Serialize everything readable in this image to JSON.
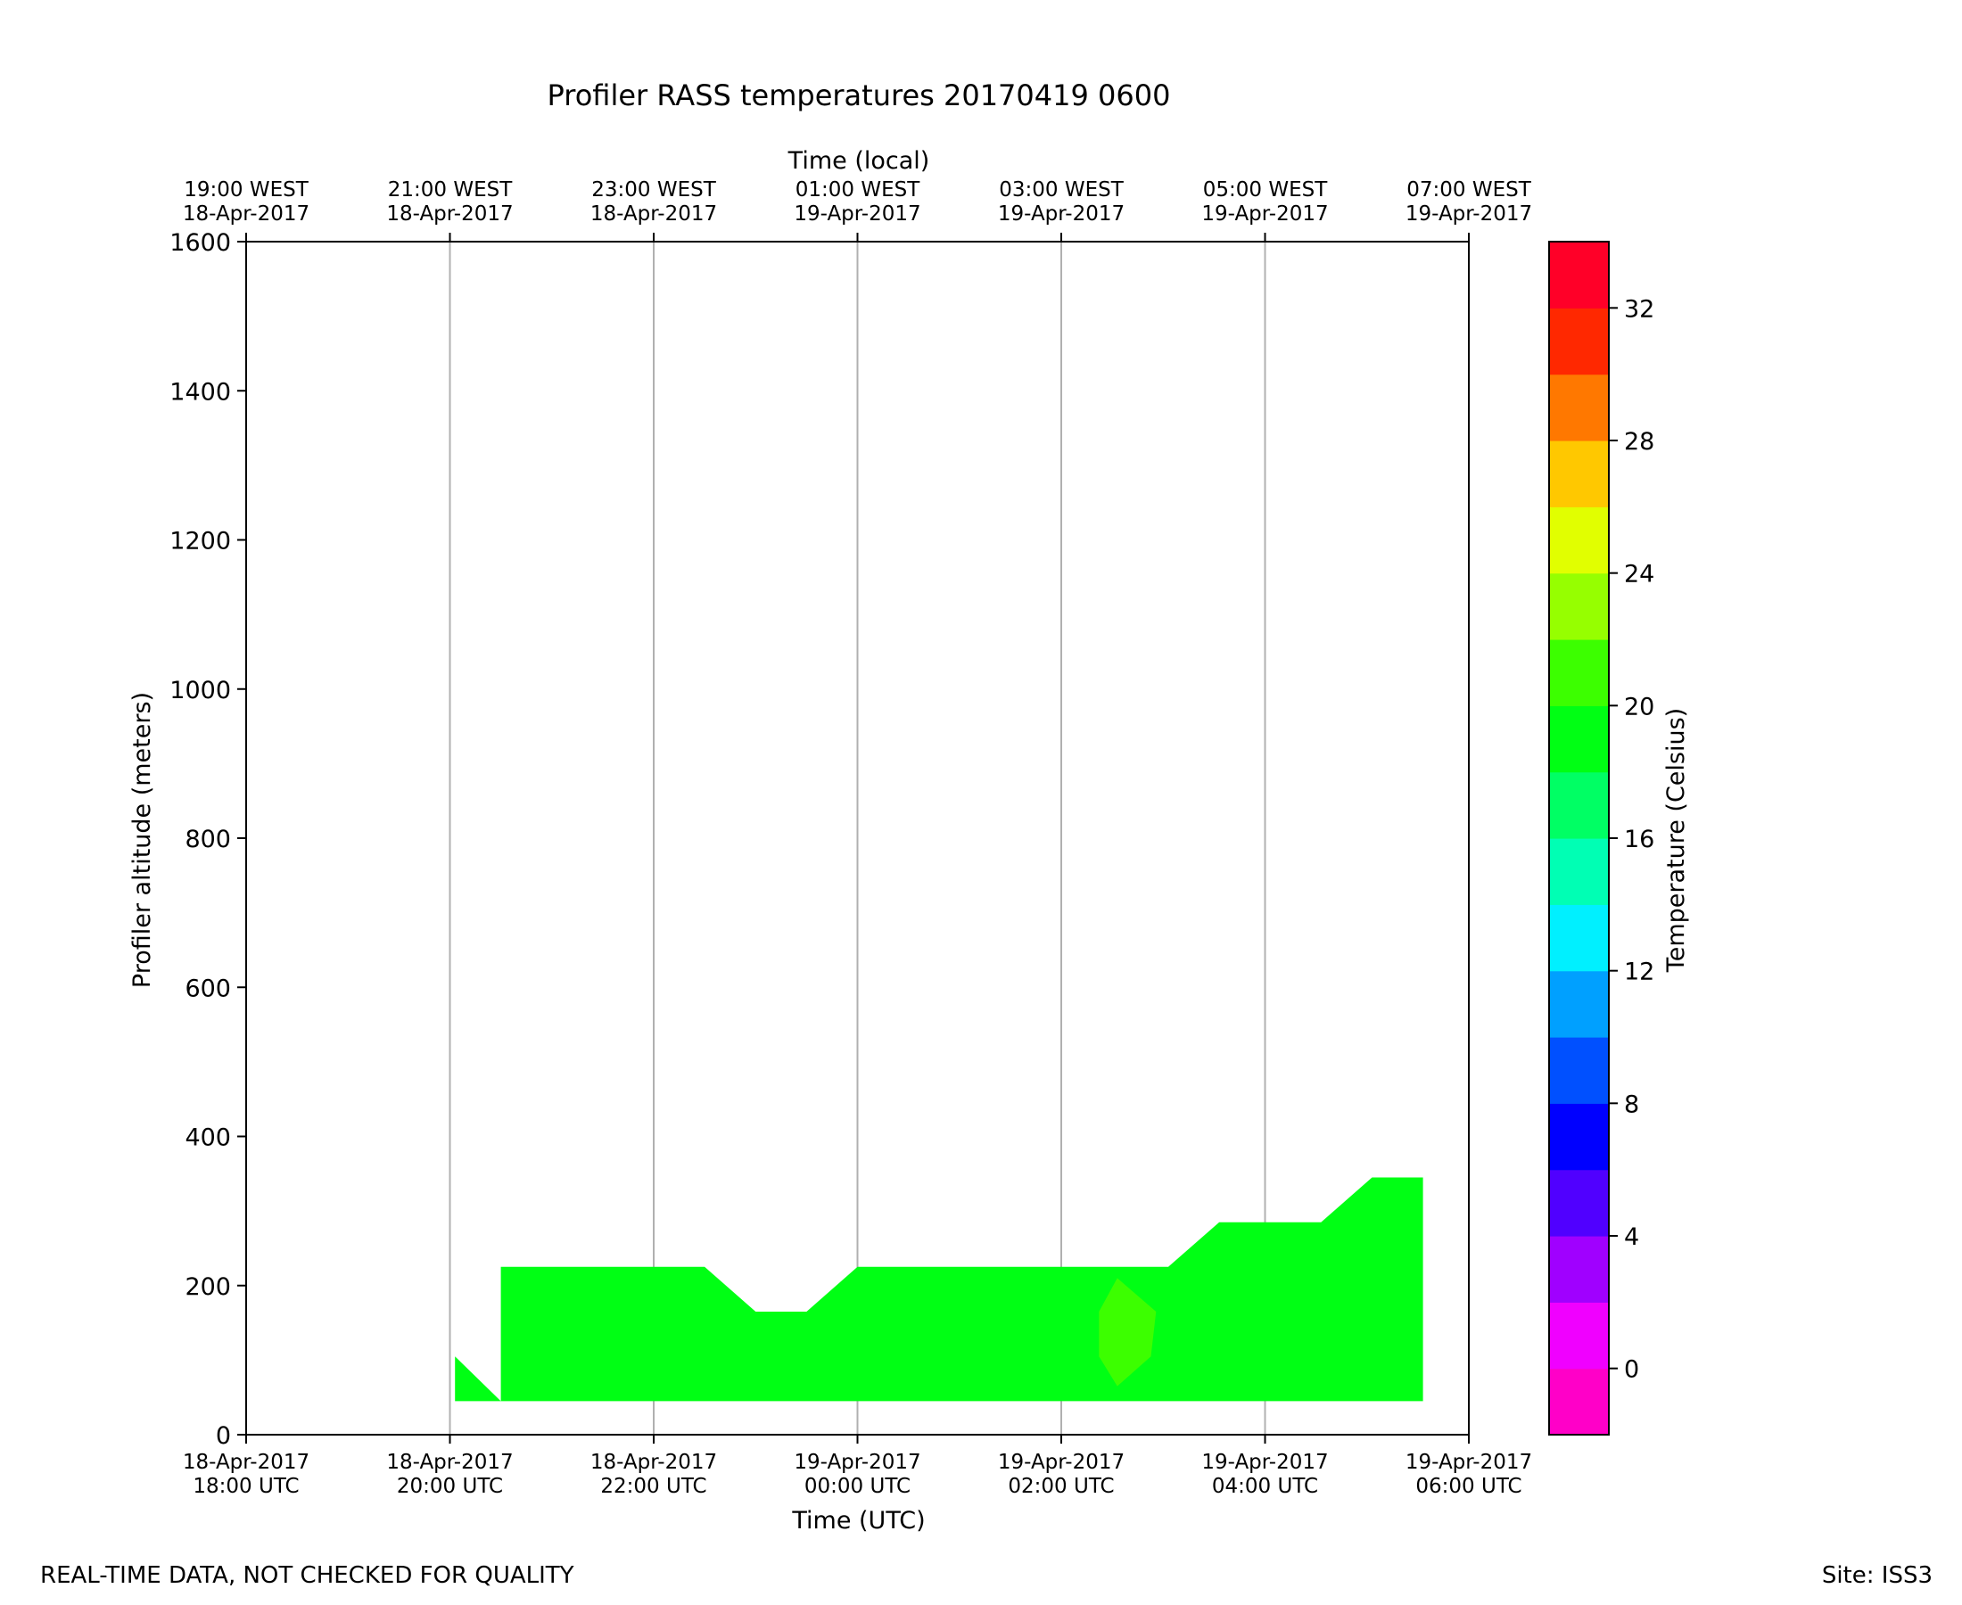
{
  "chart_data": {
    "type": "heatmap",
    "title": "Profiler RASS temperatures 20170419 0600",
    "xlabel": "Time (UTC)",
    "x2label": "Time (local)",
    "ylabel": "Profiler altitude (meters)",
    "xlim": [
      0,
      12
    ],
    "ylim": [
      0,
      1600
    ],
    "x_ticks": [
      {
        "value": 0,
        "line1": "18-Apr-2017",
        "line2": "18:00 UTC"
      },
      {
        "value": 2,
        "line1": "18-Apr-2017",
        "line2": "20:00 UTC"
      },
      {
        "value": 4,
        "line1": "18-Apr-2017",
        "line2": "22:00 UTC"
      },
      {
        "value": 6,
        "line1": "19-Apr-2017",
        "line2": "00:00 UTC"
      },
      {
        "value": 8,
        "line1": "19-Apr-2017",
        "line2": "02:00 UTC"
      },
      {
        "value": 10,
        "line1": "19-Apr-2017",
        "line2": "04:00 UTC"
      },
      {
        "value": 12,
        "line1": "19-Apr-2017",
        "line2": "06:00 UTC"
      }
    ],
    "x2_ticks": [
      {
        "value": 0,
        "line1": "19:00 WEST",
        "line2": "18-Apr-2017"
      },
      {
        "value": 2,
        "line1": "21:00 WEST",
        "line2": "18-Apr-2017"
      },
      {
        "value": 4,
        "line1": "23:00 WEST",
        "line2": "18-Apr-2017"
      },
      {
        "value": 6,
        "line1": "01:00 WEST",
        "line2": "19-Apr-2017"
      },
      {
        "value": 8,
        "line1": "03:00 WEST",
        "line2": "19-Apr-2017"
      },
      {
        "value": 10,
        "line1": "05:00 WEST",
        "line2": "19-Apr-2017"
      },
      {
        "value": 12,
        "line1": "07:00 WEST",
        "line2": "19-Apr-2017"
      }
    ],
    "y_ticks": [
      {
        "value": 0,
        "label": "0"
      },
      {
        "value": 200,
        "label": "200"
      },
      {
        "value": 400,
        "label": "400"
      },
      {
        "value": 600,
        "label": "600"
      },
      {
        "value": 800,
        "label": "800"
      },
      {
        "value": 1000,
        "label": "1000"
      },
      {
        "value": 1200,
        "label": "1200"
      },
      {
        "value": 1400,
        "label": "1400"
      },
      {
        "value": 1600,
        "label": "1600"
      }
    ],
    "vertical_grid": true,
    "colorbar": {
      "label": "Temperature (Celsius)",
      "range": [
        -2,
        34
      ],
      "levels": [
        {
          "from": -2,
          "to": 0,
          "color": "#ff00c8"
        },
        {
          "from": 0,
          "to": 2,
          "color": "#f000ff"
        },
        {
          "from": 2,
          "to": 4,
          "color": "#a000ff"
        },
        {
          "from": 4,
          "to": 6,
          "color": "#5000ff"
        },
        {
          "from": 6,
          "to": 8,
          "color": "#0000ff"
        },
        {
          "from": 8,
          "to": 10,
          "color": "#0050ff"
        },
        {
          "from": 10,
          "to": 12,
          "color": "#00a0ff"
        },
        {
          "from": 12,
          "to": 14,
          "color": "#00f0ff"
        },
        {
          "from": 14,
          "to": 16,
          "color": "#00ffb4"
        },
        {
          "from": 16,
          "to": 18,
          "color": "#00ff64"
        },
        {
          "from": 18,
          "to": 20,
          "color": "#00ff14"
        },
        {
          "from": 20,
          "to": 22,
          "color": "#3cff00"
        },
        {
          "from": 22,
          "to": 24,
          "color": "#96ff00"
        },
        {
          "from": 24,
          "to": 26,
          "color": "#e1ff00"
        },
        {
          "from": 26,
          "to": 28,
          "color": "#ffc800"
        },
        {
          "from": 28,
          "to": 30,
          "color": "#ff7800"
        },
        {
          "from": 30,
          "to": 32,
          "color": "#ff2800"
        },
        {
          "from": 32,
          "to": 34,
          "color": "#ff0028"
        }
      ],
      "ticks": [
        {
          "value": 0,
          "label": "0"
        },
        {
          "value": 4,
          "label": "4"
        },
        {
          "value": 8,
          "label": "8"
        },
        {
          "value": 12,
          "label": "12"
        },
        {
          "value": 16,
          "label": "16"
        },
        {
          "value": 20,
          "label": "20"
        },
        {
          "value": 24,
          "label": "24"
        },
        {
          "value": 28,
          "label": "28"
        },
        {
          "value": 32,
          "label": "32"
        }
      ]
    },
    "regions": [
      {
        "name": "temperature-18-20C",
        "temp_range": "18-20",
        "color": "#00ff14",
        "polygon": [
          [
            2.05,
            45
          ],
          [
            2.05,
            105
          ],
          [
            2.5,
            45
          ],
          [
            2.5,
            225
          ],
          [
            4.5,
            225
          ],
          [
            5.0,
            165
          ],
          [
            5.5,
            165
          ],
          [
            6.0,
            225
          ],
          [
            9.05,
            225
          ],
          [
            9.55,
            285
          ],
          [
            10.55,
            285
          ],
          [
            11.05,
            345
          ],
          [
            11.55,
            345
          ],
          [
            11.55,
            45
          ]
        ]
      },
      {
        "name": "temperature-20-22C",
        "temp_range": "20-22",
        "color": "#3cff00",
        "polygon": [
          [
            8.37,
            165
          ],
          [
            8.55,
            210
          ],
          [
            8.93,
            165
          ],
          [
            8.88,
            105
          ],
          [
            8.55,
            65
          ],
          [
            8.37,
            105
          ]
        ]
      }
    ]
  },
  "footer": {
    "note": "REAL-TIME DATA, NOT CHECKED FOR QUALITY",
    "site": "Site: ISS3"
  }
}
